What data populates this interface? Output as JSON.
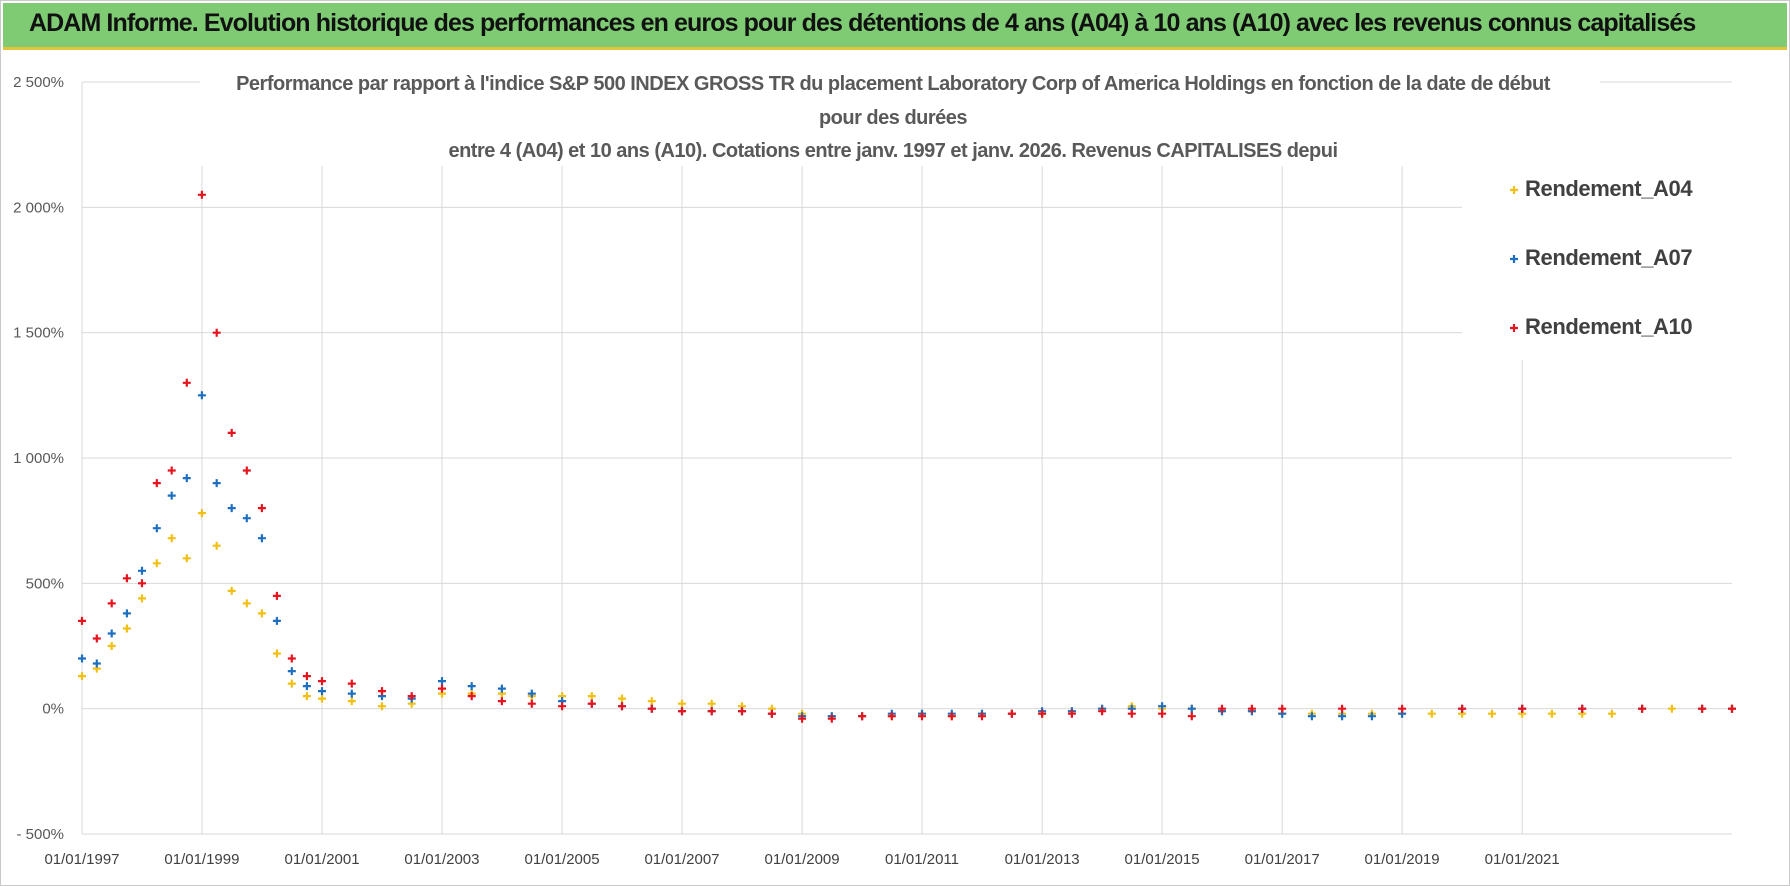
{
  "header": {
    "title": "ADAM Informe. Evolution historique des performances en euros pour des détentions de 4 ans (A04) à 10 ans (A10) avec les revenus connus capitalisés"
  },
  "colors": {
    "banner": "#7ecb74",
    "banner_accent": "#e2c43a",
    "A04": "#f2c014",
    "A07": "#1f6fc0",
    "A10": "#e5141e",
    "grid": "#d9d9d9"
  },
  "chart_data": {
    "type": "scatter",
    "title_lines": [
      "Performance par rapport à l'indice S&P 500 INDEX GROSS TR  du placement Laboratory Corp of America  Holdings en fonction de la date de début",
      "pour des durées",
      "entre 4 (A04) et 10 ans (A10).  Cotations entre janv. 1997 et janv. 2026. Revenus CAPITALISES depui"
    ],
    "marker": "+",
    "xlim": [
      "1997-01-01",
      "2024-07-01"
    ],
    "ylim": [
      -500,
      2500
    ],
    "y_unit": "%",
    "yticks": [
      {
        "value": 2500,
        "label": "2 500%"
      },
      {
        "value": 2000,
        "label": "2 000%"
      },
      {
        "value": 1500,
        "label": "1 500%"
      },
      {
        "value": 1000,
        "label": "1 000%"
      },
      {
        "value": 500,
        "label": "500%"
      },
      {
        "value": 0,
        "label": "0%"
      },
      {
        "value": -500,
        "label": "- 500%"
      }
    ],
    "xticks": [
      {
        "value": "1997-01-01",
        "label": "01/01/1997"
      },
      {
        "value": "1999-01-01",
        "label": "01/01/1999"
      },
      {
        "value": "2001-01-01",
        "label": "01/01/2001"
      },
      {
        "value": "2003-01-01",
        "label": "01/01/2003"
      },
      {
        "value": "2005-01-01",
        "label": "01/01/2005"
      },
      {
        "value": "2007-01-01",
        "label": "01/01/2007"
      },
      {
        "value": "2009-01-01",
        "label": "01/01/2009"
      },
      {
        "value": "2011-01-01",
        "label": "01/01/2011"
      },
      {
        "value": "2013-01-01",
        "label": "01/01/2013"
      },
      {
        "value": "2015-01-01",
        "label": "01/01/2015"
      },
      {
        "value": "2017-01-01",
        "label": "01/01/2017"
      },
      {
        "value": "2019-01-01",
        "label": "01/01/2019"
      },
      {
        "value": "2021-01-01",
        "label": "01/01/2021"
      }
    ],
    "grid": true,
    "legend": "top-right",
    "series": [
      {
        "name": "Rendement_A04",
        "color": "#f2c014",
        "points": [
          [
            "1997-01-01",
            130
          ],
          [
            "1997-04-01",
            160
          ],
          [
            "1997-07-01",
            250
          ],
          [
            "1997-10-01",
            320
          ],
          [
            "1998-01-01",
            440
          ],
          [
            "1998-04-01",
            580
          ],
          [
            "1998-07-01",
            680
          ],
          [
            "1998-10-01",
            600
          ],
          [
            "1999-01-01",
            780
          ],
          [
            "1999-04-01",
            650
          ],
          [
            "1999-07-01",
            470
          ],
          [
            "1999-10-01",
            420
          ],
          [
            "2000-01-01",
            380
          ],
          [
            "2000-04-01",
            220
          ],
          [
            "2000-07-01",
            100
          ],
          [
            "2000-10-01",
            50
          ],
          [
            "2001-01-01",
            40
          ],
          [
            "2001-07-01",
            30
          ],
          [
            "2002-01-01",
            10
          ],
          [
            "2002-07-01",
            20
          ],
          [
            "2003-01-01",
            60
          ],
          [
            "2003-07-01",
            60
          ],
          [
            "2004-01-01",
            60
          ],
          [
            "2004-07-01",
            50
          ],
          [
            "2005-01-01",
            50
          ],
          [
            "2005-07-01",
            50
          ],
          [
            "2006-01-01",
            40
          ],
          [
            "2006-07-01",
            30
          ],
          [
            "2007-01-01",
            20
          ],
          [
            "2007-07-01",
            20
          ],
          [
            "2008-01-01",
            10
          ],
          [
            "2008-07-01",
            0
          ],
          [
            "2009-01-01",
            -20
          ],
          [
            "2009-07-01",
            -30
          ],
          [
            "2010-01-01",
            -30
          ],
          [
            "2010-07-01",
            -30
          ],
          [
            "2011-01-01",
            -20
          ],
          [
            "2011-07-01",
            -30
          ],
          [
            "2012-01-01",
            -20
          ],
          [
            "2012-07-01",
            -20
          ],
          [
            "2013-01-01",
            -20
          ],
          [
            "2013-07-01",
            -10
          ],
          [
            "2014-01-01",
            0
          ],
          [
            "2014-07-01",
            10
          ],
          [
            "2015-01-01",
            0
          ],
          [
            "2015-07-01",
            0
          ],
          [
            "2016-01-01",
            -10
          ],
          [
            "2016-07-01",
            -10
          ],
          [
            "2017-01-01",
            -20
          ],
          [
            "2017-07-01",
            -20
          ],
          [
            "2018-01-01",
            -20
          ],
          [
            "2018-07-01",
            -20
          ],
          [
            "2019-01-01",
            -20
          ],
          [
            "2019-07-01",
            -20
          ],
          [
            "2020-01-01",
            -20
          ],
          [
            "2020-07-01",
            -20
          ],
          [
            "2021-01-01",
            -20
          ],
          [
            "2021-07-01",
            -20
          ],
          [
            "2022-01-01",
            -20
          ],
          [
            "2022-07-01",
            -20
          ],
          [
            "2023-01-01",
            0
          ],
          [
            "2023-07-01",
            0
          ],
          [
            "2024-01-01",
            0
          ],
          [
            "2024-07-01",
            0
          ]
        ]
      },
      {
        "name": "Rendement_A07",
        "color": "#1f6fc0",
        "points": [
          [
            "1997-01-01",
            200
          ],
          [
            "1997-04-01",
            180
          ],
          [
            "1997-07-01",
            300
          ],
          [
            "1997-10-01",
            380
          ],
          [
            "1998-01-01",
            550
          ],
          [
            "1998-04-01",
            720
          ],
          [
            "1998-07-01",
            850
          ],
          [
            "1998-10-01",
            920
          ],
          [
            "1999-01-01",
            1250
          ],
          [
            "1999-04-01",
            900
          ],
          [
            "1999-07-01",
            800
          ],
          [
            "1999-10-01",
            760
          ],
          [
            "2000-01-01",
            680
          ],
          [
            "2000-04-01",
            350
          ],
          [
            "2000-07-01",
            150
          ],
          [
            "2000-10-01",
            90
          ],
          [
            "2001-01-01",
            70
          ],
          [
            "2001-07-01",
            60
          ],
          [
            "2002-01-01",
            50
          ],
          [
            "2002-07-01",
            40
          ],
          [
            "2003-01-01",
            110
          ],
          [
            "2003-07-01",
            90
          ],
          [
            "2004-01-01",
            80
          ],
          [
            "2004-07-01",
            60
          ],
          [
            "2005-01-01",
            30
          ],
          [
            "2005-07-01",
            20
          ],
          [
            "2006-01-01",
            10
          ],
          [
            "2006-07-01",
            0
          ],
          [
            "2007-01-01",
            -10
          ],
          [
            "2007-07-01",
            -10
          ],
          [
            "2008-01-01",
            -10
          ],
          [
            "2008-07-01",
            -20
          ],
          [
            "2009-01-01",
            -30
          ],
          [
            "2009-07-01",
            -30
          ],
          [
            "2010-01-01",
            -30
          ],
          [
            "2010-07-01",
            -20
          ],
          [
            "2011-01-01",
            -20
          ],
          [
            "2011-07-01",
            -20
          ],
          [
            "2012-01-01",
            -20
          ],
          [
            "2012-07-01",
            -20
          ],
          [
            "2013-01-01",
            -10
          ],
          [
            "2013-07-01",
            -10
          ],
          [
            "2014-01-01",
            0
          ],
          [
            "2014-07-01",
            0
          ],
          [
            "2015-01-01",
            10
          ],
          [
            "2015-07-01",
            0
          ],
          [
            "2016-01-01",
            -10
          ],
          [
            "2016-07-01",
            -10
          ],
          [
            "2017-01-01",
            -20
          ],
          [
            "2017-07-01",
            -30
          ],
          [
            "2018-01-01",
            -30
          ],
          [
            "2018-07-01",
            -30
          ],
          [
            "2019-01-01",
            -20
          ],
          [
            "2020-01-01",
            0
          ],
          [
            "2021-01-01",
            0
          ],
          [
            "2022-01-01",
            0
          ],
          [
            "2023-01-01",
            0
          ],
          [
            "2024-01-01",
            0
          ],
          [
            "2024-07-01",
            0
          ]
        ]
      },
      {
        "name": "Rendement_A10",
        "color": "#e5141e",
        "points": [
          [
            "1997-01-01",
            350
          ],
          [
            "1997-04-01",
            280
          ],
          [
            "1997-07-01",
            420
          ],
          [
            "1997-10-01",
            520
          ],
          [
            "1998-01-01",
            500
          ],
          [
            "1998-04-01",
            900
          ],
          [
            "1998-07-01",
            950
          ],
          [
            "1998-10-01",
            1300
          ],
          [
            "1999-01-01",
            2050
          ],
          [
            "1999-04-01",
            1500
          ],
          [
            "1999-07-01",
            1100
          ],
          [
            "1999-10-01",
            950
          ],
          [
            "2000-01-01",
            800
          ],
          [
            "2000-04-01",
            450
          ],
          [
            "2000-07-01",
            200
          ],
          [
            "2000-10-01",
            130
          ],
          [
            "2001-01-01",
            110
          ],
          [
            "2001-07-01",
            100
          ],
          [
            "2002-01-01",
            70
          ],
          [
            "2002-07-01",
            50
          ],
          [
            "2003-01-01",
            80
          ],
          [
            "2003-07-01",
            50
          ],
          [
            "2004-01-01",
            30
          ],
          [
            "2004-07-01",
            20
          ],
          [
            "2005-01-01",
            10
          ],
          [
            "2005-07-01",
            20
          ],
          [
            "2006-01-01",
            10
          ],
          [
            "2006-07-01",
            0
          ],
          [
            "2007-01-01",
            -10
          ],
          [
            "2007-07-01",
            -10
          ],
          [
            "2008-01-01",
            -10
          ],
          [
            "2008-07-01",
            -20
          ],
          [
            "2009-01-01",
            -40
          ],
          [
            "2009-07-01",
            -40
          ],
          [
            "2010-01-01",
            -30
          ],
          [
            "2010-07-01",
            -30
          ],
          [
            "2011-01-01",
            -30
          ],
          [
            "2011-07-01",
            -30
          ],
          [
            "2012-01-01",
            -30
          ],
          [
            "2012-07-01",
            -20
          ],
          [
            "2013-01-01",
            -20
          ],
          [
            "2013-07-01",
            -20
          ],
          [
            "2014-01-01",
            -10
          ],
          [
            "2014-07-01",
            -20
          ],
          [
            "2015-01-01",
            -20
          ],
          [
            "2015-07-01",
            -30
          ],
          [
            "2016-01-01",
            0
          ],
          [
            "2016-07-01",
            0
          ],
          [
            "2017-01-01",
            0
          ],
          [
            "2018-01-01",
            0
          ],
          [
            "2019-01-01",
            0
          ],
          [
            "2020-01-01",
            0
          ],
          [
            "2021-01-01",
            0
          ],
          [
            "2022-01-01",
            0
          ],
          [
            "2023-01-01",
            0
          ],
          [
            "2024-01-01",
            0
          ],
          [
            "2024-07-01",
            0
          ]
        ]
      }
    ]
  }
}
